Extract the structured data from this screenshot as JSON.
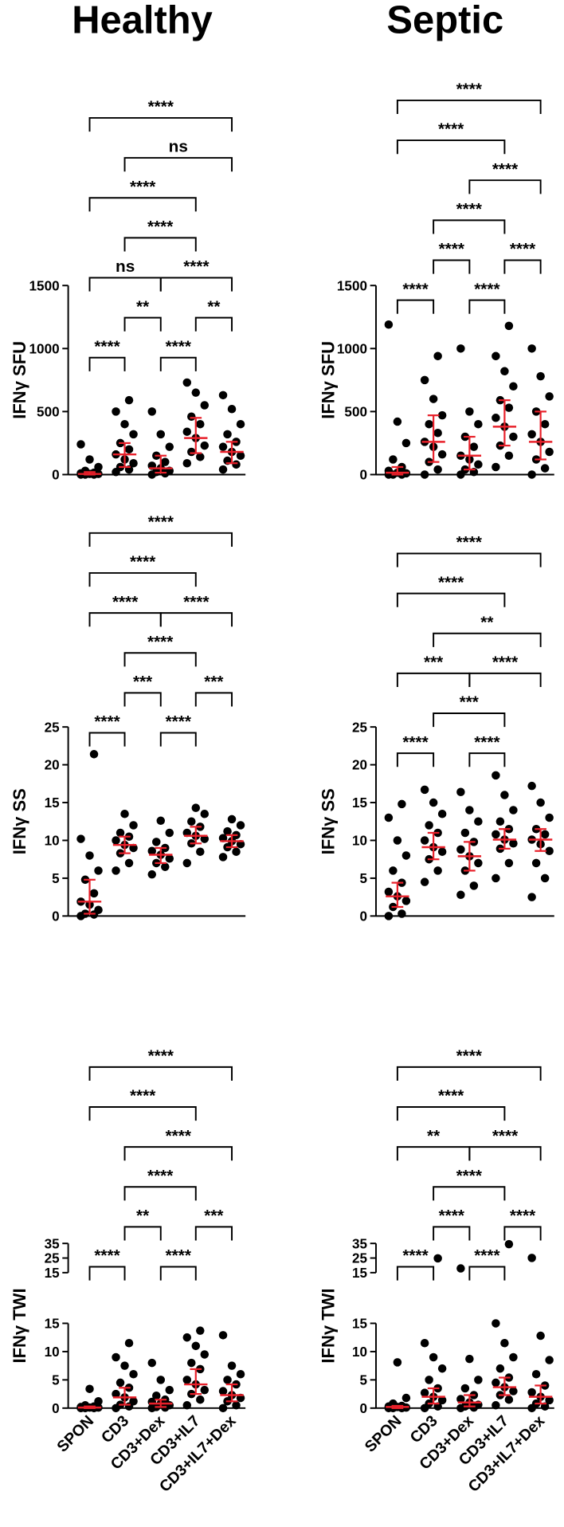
{
  "categories": [
    "SPON",
    "CD3",
    "CD3+Dex",
    "CD3+IL7",
    "CD3+IL7+Dex"
  ],
  "chart_data": [
    {
      "type": "dot",
      "title": "Healthy",
      "ylabel": "IFNγ SFU",
      "ylim": [
        0,
        1500
      ],
      "yticks": [
        0,
        500,
        1000,
        1500
      ],
      "median": [
        5,
        160,
        50,
        290,
        180
      ],
      "q1": [
        0,
        60,
        15,
        170,
        90
      ],
      "q3": [
        20,
        250,
        150,
        450,
        260
      ],
      "points": [
        [
          0,
          0,
          0,
          5,
          5,
          10,
          15,
          30,
          60,
          120,
          240
        ],
        [
          20,
          40,
          60,
          90,
          120,
          160,
          200,
          250,
          320,
          400,
          500,
          590
        ],
        [
          0,
          10,
          20,
          30,
          50,
          70,
          100,
          150,
          220,
          320,
          500
        ],
        [
          90,
          140,
          180,
          230,
          290,
          340,
          400,
          460,
          550,
          650,
          730
        ],
        [
          40,
          80,
          110,
          150,
          180,
          220,
          260,
          320,
          400,
          520,
          630
        ]
      ],
      "comparisons": [
        {
          "groups": [
            0,
            1
          ],
          "label": "****"
        },
        {
          "groups": [
            2,
            3
          ],
          "label": "****"
        },
        {
          "groups": [
            1,
            2
          ],
          "label": "**"
        },
        {
          "groups": [
            3,
            4
          ],
          "label": "**"
        },
        {
          "groups": [
            0,
            2
          ],
          "label": "ns"
        },
        {
          "groups": [
            2,
            4
          ],
          "label": "****"
        },
        {
          "groups": [
            1,
            3
          ],
          "label": "****"
        },
        {
          "groups": [
            0,
            3
          ],
          "label": "****"
        },
        {
          "groups": [
            1,
            4
          ],
          "label": "ns"
        },
        {
          "groups": [
            0,
            4
          ],
          "label": "****"
        }
      ]
    },
    {
      "type": "dot",
      "title": "Septic",
      "ylabel": "IFNγ SFU",
      "ylim": [
        0,
        1500
      ],
      "yticks": [
        0,
        500,
        1000,
        1500
      ],
      "median": [
        15,
        260,
        150,
        380,
        260
      ],
      "q1": [
        0,
        100,
        40,
        230,
        120
      ],
      "q3": [
        60,
        470,
        300,
        590,
        500
      ],
      "points": [
        [
          0,
          0,
          0,
          10,
          15,
          30,
          60,
          120,
          250,
          420,
          1190
        ],
        [
          0,
          40,
          100,
          160,
          220,
          260,
          330,
          400,
          470,
          600,
          750,
          940
        ],
        [
          0,
          20,
          40,
          80,
          120,
          150,
          220,
          300,
          400,
          500,
          1000
        ],
        [
          60,
          150,
          230,
          300,
          380,
          450,
          530,
          590,
          700,
          820,
          940,
          1180
        ],
        [
          0,
          50,
          120,
          180,
          260,
          320,
          400,
          500,
          620,
          780,
          1000
        ]
      ],
      "comparisons": [
        {
          "groups": [
            0,
            1
          ],
          "label": "****"
        },
        {
          "groups": [
            2,
            3
          ],
          "label": "****"
        },
        {
          "groups": [
            1,
            2
          ],
          "label": "****"
        },
        {
          "groups": [
            3,
            4
          ],
          "label": "****"
        },
        {
          "groups": [
            1,
            3
          ],
          "label": "****"
        },
        {
          "groups": [
            2,
            4
          ],
          "label": "****"
        },
        {
          "groups": [
            0,
            3
          ],
          "label": "****"
        },
        {
          "groups": [
            0,
            4
          ],
          "label": "****"
        }
      ]
    },
    {
      "type": "dot",
      "ylabel": "IFNγ SS",
      "ylim": [
        0,
        25
      ],
      "yticks": [
        0,
        5,
        10,
        15,
        20,
        25
      ],
      "median": [
        1.9,
        9.4,
        8.1,
        10.6,
        9.9
      ],
      "q1": [
        0.3,
        8.3,
        7,
        9.6,
        9.1
      ],
      "q3": [
        4.8,
        10.5,
        9,
        11.8,
        10.7
      ],
      "points": [
        [
          0,
          0.2,
          0.3,
          0.8,
          1.5,
          1.9,
          3,
          4.8,
          6,
          8,
          10.2,
          21.4
        ],
        [
          6,
          7,
          8.3,
          9,
          9.4,
          10,
          10.5,
          11,
          12,
          13.5
        ],
        [
          5.5,
          6.5,
          7,
          7.6,
          8.1,
          8.6,
          9,
          9.8,
          11,
          12.6
        ],
        [
          7,
          8.5,
          9.6,
          10.2,
          10.6,
          11,
          11.8,
          12.5,
          13.5,
          14.3
        ],
        [
          7.8,
          8.5,
          9.1,
          9.5,
          9.9,
          10.3,
          10.7,
          11.2,
          12,
          12.8
        ]
      ],
      "comparisons": [
        {
          "groups": [
            0,
            1
          ],
          "label": "****"
        },
        {
          "groups": [
            2,
            3
          ],
          "label": "****"
        },
        {
          "groups": [
            1,
            2
          ],
          "label": "***"
        },
        {
          "groups": [
            3,
            4
          ],
          "label": "***"
        },
        {
          "groups": [
            1,
            3
          ],
          "label": "****"
        },
        {
          "groups": [
            0,
            2
          ],
          "label": "****"
        },
        {
          "groups": [
            2,
            4
          ],
          "label": "****"
        },
        {
          "groups": [
            0,
            3
          ],
          "label": "****"
        },
        {
          "groups": [
            0,
            4
          ],
          "label": "****"
        }
      ]
    },
    {
      "type": "dot",
      "ylabel": "IFNγ SS",
      "ylim": [
        0,
        25
      ],
      "yticks": [
        0,
        5,
        10,
        15,
        20,
        25
      ],
      "median": [
        2.6,
        9.1,
        7.9,
        10.1,
        10.1
      ],
      "q1": [
        1.2,
        7.5,
        6,
        8.9,
        8.6
      ],
      "q3": [
        4.4,
        11,
        9.8,
        11.5,
        11.5
      ],
      "points": [
        [
          0,
          0.3,
          1.2,
          2,
          2.6,
          3.2,
          4.4,
          6,
          8,
          10,
          13,
          14.8
        ],
        [
          4.5,
          6,
          7.5,
          8.5,
          9.1,
          10,
          11,
          12,
          13.5,
          15,
          16.7
        ],
        [
          2.8,
          4,
          6,
          7,
          7.9,
          8.8,
          9.8,
          11,
          12.5,
          14,
          16.4
        ],
        [
          5,
          7,
          8.9,
          9.6,
          10.1,
          10.8,
          11.5,
          12.5,
          14,
          16,
          18.6
        ],
        [
          2.5,
          5,
          7,
          8.6,
          9.5,
          10.1,
          10.8,
          11.5,
          13,
          15,
          17.2
        ]
      ],
      "comparisons": [
        {
          "groups": [
            0,
            1
          ],
          "label": "****"
        },
        {
          "groups": [
            2,
            3
          ],
          "label": "****"
        },
        {
          "groups": [
            1,
            3
          ],
          "label": "***"
        },
        {
          "groups": [
            0,
            2
          ],
          "label": "***"
        },
        {
          "groups": [
            2,
            4
          ],
          "label": "****"
        },
        {
          "groups": [
            1,
            4
          ],
          "label": "**"
        },
        {
          "groups": [
            0,
            3
          ],
          "label": "****"
        },
        {
          "groups": [
            0,
            4
          ],
          "label": "****"
        }
      ]
    },
    {
      "type": "dot",
      "ylabel": "IFNγ TWI",
      "ylim": [
        0,
        15
      ],
      "yticks": [
        0,
        5,
        10,
        15
      ],
      "ylim_break": [
        15,
        35
      ],
      "yticks_break": [
        15,
        25,
        35
      ],
      "median": [
        0.1,
        1.9,
        0.8,
        4.2,
        2.3
      ],
      "q1": [
        0,
        0.6,
        0.2,
        2.5,
        1.2
      ],
      "q3": [
        0.3,
        3.6,
        1.5,
        6.9,
        4.2
      ],
      "points": [
        [
          0,
          0,
          0,
          0.1,
          0.1,
          0.2,
          0.3,
          0.5,
          1.2,
          3.4
        ],
        [
          0,
          0.3,
          0.6,
          1.2,
          1.9,
          2.5,
          3.6,
          4.5,
          6,
          7.5,
          9,
          11.5
        ],
        [
          0,
          0.1,
          0.2,
          0.5,
          0.8,
          1.1,
          1.5,
          2.2,
          3.2,
          5,
          8
        ],
        [
          0.5,
          1.5,
          2.5,
          3.2,
          4.2,
          5,
          6.9,
          8,
          9.5,
          11,
          12.5,
          13.7
        ],
        [
          0,
          0.5,
          1.2,
          1.8,
          2.3,
          3,
          4.2,
          5,
          6,
          7.5,
          12.9
        ]
      ],
      "comparisons": [
        {
          "groups": [
            0,
            1
          ],
          "label": "****"
        },
        {
          "groups": [
            2,
            3
          ],
          "label": "****"
        },
        {
          "groups": [
            1,
            2
          ],
          "label": "**"
        },
        {
          "groups": [
            3,
            4
          ],
          "label": "***"
        },
        {
          "groups": [
            1,
            3
          ],
          "label": "****"
        },
        {
          "groups": [
            1,
            4
          ],
          "label": "****"
        },
        {
          "groups": [
            0,
            3
          ],
          "label": "****"
        },
        {
          "groups": [
            0,
            4
          ],
          "label": "****"
        }
      ]
    },
    {
      "type": "dot",
      "ylabel": "IFNγ TWI",
      "ylim": [
        0,
        15
      ],
      "yticks": [
        0,
        5,
        10,
        15
      ],
      "ylim_break": [
        15,
        35
      ],
      "yticks_break": [
        15,
        25,
        35
      ],
      "median": [
        0.2,
        2,
        1,
        3.7,
        2
      ],
      "q1": [
        0,
        0.8,
        0.3,
        2.3,
        0.8
      ],
      "q3": [
        0.4,
        3.5,
        2.3,
        5.4,
        4
      ],
      "points": [
        [
          0,
          0,
          0,
          0.1,
          0.2,
          0.3,
          0.4,
          0.8,
          1.8,
          8.1
        ],
        [
          0,
          0.3,
          0.8,
          1.4,
          2,
          2.7,
          3.5,
          5,
          7,
          9,
          11.5,
          24.8
        ],
        [
          0,
          0.1,
          0.3,
          0.6,
          1,
          1.6,
          2.3,
          3.5,
          5,
          8.7,
          17.9
        ],
        [
          0.5,
          1.5,
          2.3,
          3,
          3.7,
          4.5,
          5.4,
          7,
          9,
          11.5,
          15,
          34.5
        ],
        [
          0,
          0.3,
          0.8,
          1.4,
          2,
          2.8,
          4,
          6,
          8.5,
          12.8,
          25.1
        ]
      ],
      "comparisons": [
        {
          "groups": [
            0,
            1
          ],
          "label": "****"
        },
        {
          "groups": [
            2,
            3
          ],
          "label": "****"
        },
        {
          "groups": [
            1,
            2
          ],
          "label": "****"
        },
        {
          "groups": [
            3,
            4
          ],
          "label": "****"
        },
        {
          "groups": [
            1,
            3
          ],
          "label": "****"
        },
        {
          "groups": [
            0,
            2
          ],
          "label": "**"
        },
        {
          "groups": [
            2,
            4
          ],
          "label": "****"
        },
        {
          "groups": [
            0,
            3
          ],
          "label": "****"
        },
        {
          "groups": [
            0,
            4
          ],
          "label": "****"
        }
      ]
    }
  ]
}
